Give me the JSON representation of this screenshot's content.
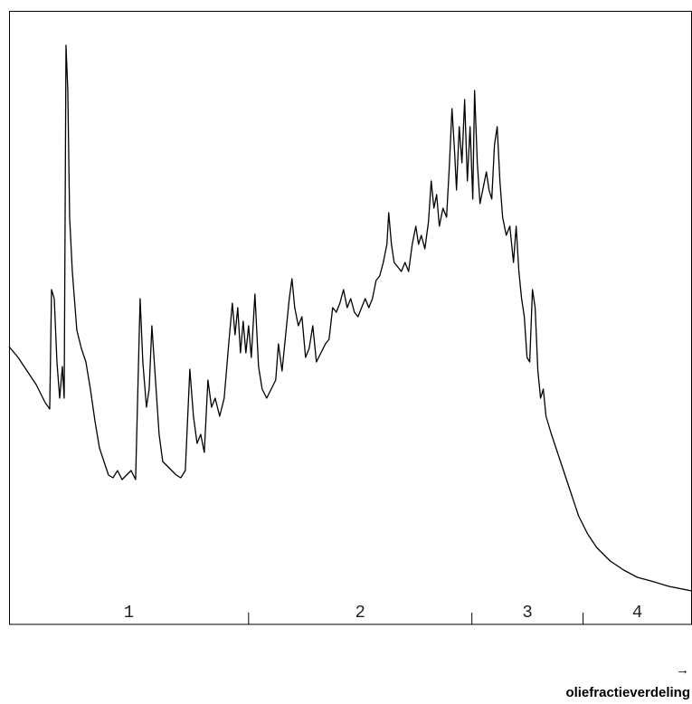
{
  "chart_data": {
    "type": "line",
    "xlabel": "oliefractieverdeling",
    "xlabel_arrow": "→",
    "categories": [
      "1",
      "2",
      "3",
      "4"
    ],
    "xlim": [
      0,
      755
    ],
    "ylim": [
      0,
      678
    ],
    "xticks": [
      265,
      512,
      635
    ],
    "color": "#000000",
    "x": [
      0,
      10,
      20,
      30,
      40,
      45,
      47,
      50,
      53,
      56,
      59,
      61,
      63,
      65,
      67,
      70,
      75,
      80,
      85,
      90,
      95,
      100,
      105,
      110,
      115,
      120,
      125,
      130,
      135,
      140,
      145,
      148,
      152,
      155,
      158,
      162,
      166,
      170,
      175,
      180,
      185,
      190,
      195,
      200,
      204,
      208,
      212,
      216,
      220,
      224,
      228,
      233,
      238,
      243,
      247,
      250,
      253,
      256,
      259,
      262,
      265,
      268,
      272,
      276,
      280,
      285,
      290,
      295,
      298,
      302,
      306,
      310,
      313,
      316,
      320,
      324,
      328,
      332,
      336,
      340,
      345,
      350,
      354,
      358,
      362,
      366,
      370,
      374,
      378,
      382,
      386,
      390,
      394,
      398,
      402,
      406,
      410,
      414,
      418,
      420,
      423,
      426,
      430,
      434,
      438,
      442,
      446,
      450,
      453,
      456,
      460,
      464,
      467,
      470,
      473,
      476,
      480,
      484,
      487,
      490,
      493,
      495,
      498,
      501,
      504,
      507,
      510,
      513,
      515,
      518,
      521,
      524,
      528,
      531,
      534,
      537,
      540,
      543,
      546,
      550,
      554,
      558,
      561,
      564,
      567,
      570,
      573,
      576,
      579,
      582,
      585,
      588,
      591,
      594,
      600,
      610,
      620,
      630,
      640,
      650,
      665,
      680,
      695,
      710,
      730,
      755
    ],
    "values": [
      307,
      295,
      280,
      265,
      245,
      238,
      370,
      360,
      290,
      250,
      285,
      250,
      640,
      590,
      450,
      390,
      325,
      305,
      290,
      260,
      225,
      195,
      180,
      165,
      162,
      170,
      160,
      165,
      170,
      160,
      360,
      290,
      240,
      260,
      330,
      270,
      210,
      180,
      175,
      170,
      165,
      162,
      170,
      282,
      230,
      200,
      210,
      190,
      270,
      240,
      250,
      230,
      250,
      310,
      355,
      320,
      350,
      300,
      335,
      300,
      330,
      295,
      365,
      285,
      260,
      250,
      260,
      270,
      310,
      280,
      320,
      360,
      382,
      350,
      330,
      340,
      295,
      305,
      330,
      290,
      300,
      310,
      315,
      350,
      345,
      355,
      370,
      350,
      360,
      345,
      340,
      350,
      360,
      350,
      360,
      380,
      385,
      400,
      420,
      455,
      420,
      400,
      395,
      390,
      400,
      390,
      420,
      440,
      420,
      430,
      415,
      445,
      490,
      460,
      475,
      440,
      460,
      450,
      505,
      570,
      520,
      480,
      550,
      510,
      580,
      490,
      550,
      470,
      590,
      510,
      465,
      480,
      500,
      480,
      470,
      530,
      550,
      490,
      450,
      430,
      440,
      400,
      440,
      390,
      360,
      340,
      295,
      290,
      370,
      350,
      280,
      250,
      260,
      230,
      210,
      180,
      150,
      120,
      100,
      85,
      70,
      60,
      52,
      48,
      42,
      37
    ]
  }
}
